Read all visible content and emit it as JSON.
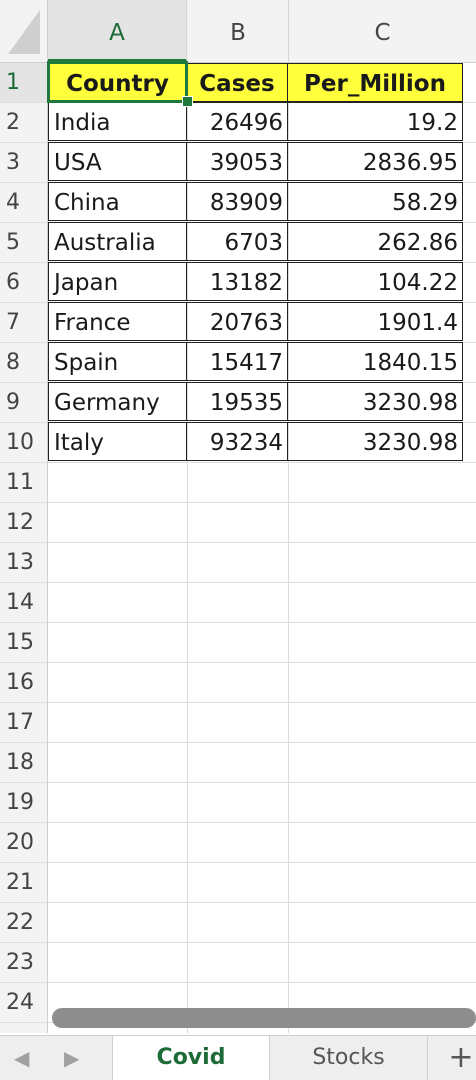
{
  "columns": [
    "A",
    "B",
    "C"
  ],
  "selected_column": "A",
  "rows": [
    "1",
    "2",
    "3",
    "4",
    "5",
    "6",
    "7",
    "8",
    "9",
    "10",
    "11",
    "12",
    "13",
    "14",
    "15",
    "16",
    "17",
    "18",
    "19",
    "20",
    "21",
    "22",
    "23",
    "24"
  ],
  "selected_row": "1",
  "header": {
    "a": "Country",
    "b": "Cases",
    "c": "Per_Million"
  },
  "data": [
    {
      "country": "India",
      "cases": "26496",
      "per_million": "19.2"
    },
    {
      "country": "USA",
      "cases": "39053",
      "per_million": "2836.95"
    },
    {
      "country": "China",
      "cases": "83909",
      "per_million": "58.29"
    },
    {
      "country": "Australia",
      "cases": "6703",
      "per_million": "262.86"
    },
    {
      "country": "Japan",
      "cases": "13182",
      "per_million": "104.22"
    },
    {
      "country": "France",
      "cases": "20763",
      "per_million": "1901.4"
    },
    {
      "country": "Spain",
      "cases": "15417",
      "per_million": "1840.15"
    },
    {
      "country": "Germany",
      "cases": "19535",
      "per_million": "3230.98"
    },
    {
      "country": "Italy",
      "cases": "93234",
      "per_million": "3230.98"
    }
  ],
  "colors": {
    "header_fill": "#ffff3b",
    "accent_green": "#1e7a3c"
  },
  "tabs": [
    {
      "label": "Covid",
      "active": true
    },
    {
      "label": "Stocks",
      "active": false
    }
  ],
  "icons": {
    "prev": "chevron-left-icon",
    "next": "chevron-right-icon",
    "add": "plus-icon"
  },
  "glyphs": {
    "prev": "◀",
    "next": "▶",
    "add": "+"
  }
}
